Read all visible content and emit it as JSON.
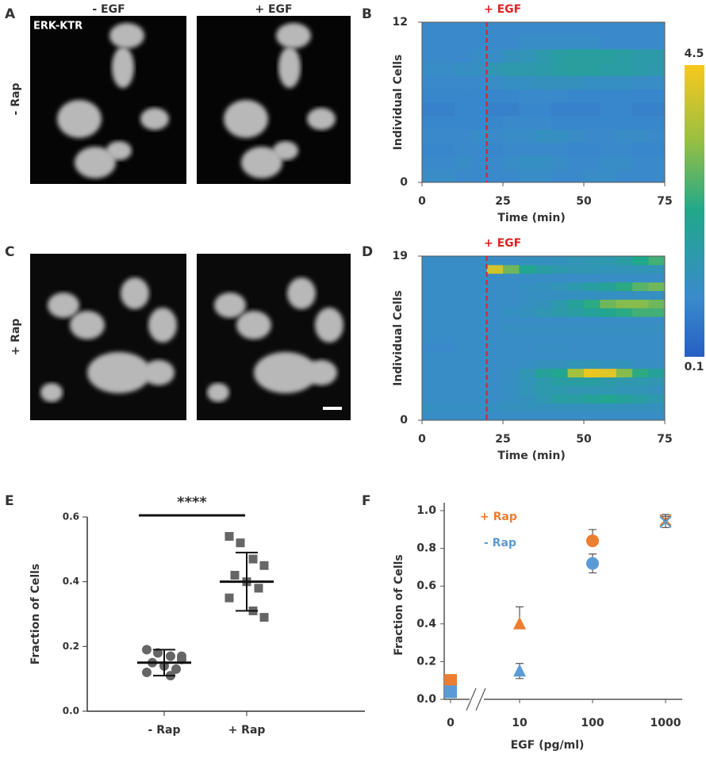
{
  "panel_labels": [
    "A",
    "B",
    "C",
    "D",
    "E",
    "F"
  ],
  "images": {
    "columns": [
      "- EGF",
      "+ EGF"
    ],
    "rows": [
      "- Rap",
      "+ Rap"
    ],
    "marker": "ERK-KTR"
  },
  "colorbar": {
    "zlim": [
      0.1,
      4.5
    ]
  },
  "chart_data": [
    {
      "type": "heatmap",
      "xlabel": "Time (min)",
      "ylabel": "Individual Cells",
      "annotation": "+ EGF",
      "annotation_x": 20,
      "xlim": [
        0,
        75
      ],
      "xticks": [
        0,
        25,
        50,
        75
      ],
      "ylim": [
        0,
        12
      ],
      "yticks": [
        0,
        12
      ],
      "z": [
        [
          1.1,
          1.1,
          1.0,
          1.0,
          1.0,
          1.0,
          1.1,
          1.1,
          1.0,
          1.0,
          1.1,
          1.1,
          1.0,
          1.0,
          1.0
        ],
        [
          1.0,
          1.0,
          1.1,
          1.0,
          1.0,
          1.1,
          1.2,
          1.2,
          1.1,
          1.0,
          1.0,
          1.1,
          1.1,
          1.0,
          1.0
        ],
        [
          0.9,
          0.9,
          1.0,
          1.0,
          0.9,
          1.0,
          1.0,
          1.0,
          1.0,
          0.9,
          0.9,
          1.0,
          1.0,
          0.9,
          0.9
        ],
        [
          1.0,
          1.0,
          1.0,
          1.1,
          1.0,
          1.1,
          1.1,
          1.2,
          1.2,
          1.1,
          1.0,
          1.0,
          1.1,
          1.1,
          1.0
        ],
        [
          0.9,
          0.9,
          0.9,
          0.9,
          0.9,
          1.0,
          1.0,
          1.0,
          0.9,
          0.9,
          0.9,
          0.9,
          0.9,
          0.9,
          0.9
        ],
        [
          0.8,
          0.8,
          0.9,
          0.9,
          0.8,
          0.8,
          0.9,
          0.9,
          0.8,
          0.8,
          0.8,
          0.9,
          0.9,
          0.8,
          0.8
        ],
        [
          0.9,
          0.9,
          0.9,
          0.9,
          0.9,
          0.9,
          1.0,
          1.0,
          1.0,
          0.9,
          0.9,
          0.9,
          0.9,
          0.9,
          0.9
        ],
        [
          1.0,
          1.0,
          1.0,
          1.0,
          1.1,
          1.2,
          1.2,
          1.3,
          1.3,
          1.3,
          1.2,
          1.2,
          1.2,
          1.1,
          1.1
        ],
        [
          1.1,
          1.1,
          1.2,
          1.2,
          1.5,
          1.6,
          1.6,
          1.7,
          1.8,
          1.9,
          1.9,
          1.8,
          1.8,
          1.7,
          1.6
        ],
        [
          1.0,
          1.0,
          1.0,
          1.1,
          1.1,
          1.3,
          1.4,
          1.6,
          1.8,
          1.9,
          1.9,
          1.9,
          1.8,
          1.7,
          1.7
        ],
        [
          1.0,
          1.0,
          1.0,
          1.0,
          1.0,
          1.0,
          1.1,
          1.1,
          1.1,
          1.1,
          1.1,
          1.0,
          1.0,
          1.0,
          1.0
        ],
        [
          1.0,
          1.0,
          1.0,
          1.0,
          1.0,
          1.0,
          1.0,
          1.0,
          1.0,
          1.0,
          1.0,
          1.0,
          1.0,
          1.0,
          1.0
        ]
      ]
    },
    {
      "type": "heatmap",
      "xlabel": "Time (min)",
      "ylabel": "Individual Cells",
      "annotation": "+ EGF",
      "annotation_x": 20,
      "xlim": [
        0,
        75
      ],
      "xticks": [
        0,
        25,
        50,
        75
      ],
      "ylim": [
        0,
        19
      ],
      "yticks": [
        0,
        19
      ],
      "z": [
        [
          1.1,
          1.1,
          1.1,
          1.1,
          1.1,
          1.1,
          1.1,
          1.1,
          1.1,
          1.1,
          1.1,
          1.1,
          1.1,
          1.1,
          1.1
        ],
        [
          1.2,
          1.2,
          1.2,
          1.2,
          1.2,
          1.3,
          1.3,
          1.3,
          1.3,
          1.3,
          1.3,
          1.3,
          1.3,
          1.3,
          1.3
        ],
        [
          1.1,
          1.1,
          1.1,
          1.1,
          1.1,
          1.2,
          1.3,
          1.5,
          1.8,
          1.8,
          2.0,
          2.2,
          2.0,
          1.8,
          1.6
        ],
        [
          1.1,
          1.1,
          1.1,
          1.1,
          1.1,
          1.2,
          1.4,
          1.6,
          1.6,
          1.5,
          1.5,
          1.5,
          1.4,
          1.4,
          1.3
        ],
        [
          1.1,
          1.1,
          1.1,
          1.1,
          1.1,
          1.2,
          1.4,
          1.6,
          1.8,
          1.8,
          1.8,
          1.7,
          1.6,
          1.6,
          1.5
        ],
        [
          1.1,
          1.1,
          1.1,
          1.1,
          1.1,
          1.2,
          1.5,
          2.0,
          2.2,
          3.5,
          4.3,
          4.2,
          3.2,
          2.4,
          2.0
        ],
        [
          1.1,
          1.1,
          1.1,
          1.1,
          1.1,
          1.1,
          1.2,
          1.3,
          1.3,
          1.4,
          1.4,
          1.3,
          1.3,
          1.2,
          1.2
        ],
        [
          1.1,
          1.1,
          1.1,
          1.1,
          1.1,
          1.1,
          1.1,
          1.1,
          1.1,
          1.1,
          1.1,
          1.1,
          1.1,
          1.1,
          1.1
        ],
        [
          1.0,
          1.0,
          1.1,
          1.1,
          1.1,
          1.1,
          1.1,
          1.2,
          1.2,
          1.1,
          1.1,
          1.1,
          1.1,
          1.1,
          1.1
        ],
        [
          1.1,
          1.1,
          1.1,
          1.1,
          1.1,
          1.1,
          1.1,
          1.1,
          1.1,
          1.1,
          1.1,
          1.1,
          1.1,
          1.1,
          1.1
        ],
        [
          1.1,
          1.1,
          1.1,
          1.1,
          1.1,
          1.2,
          1.2,
          1.2,
          1.2,
          1.2,
          1.2,
          1.2,
          1.2,
          1.2,
          1.2
        ],
        [
          1.1,
          1.1,
          1.1,
          1.1,
          1.1,
          1.1,
          1.1,
          1.1,
          1.1,
          1.1,
          1.1,
          1.1,
          1.1,
          1.1,
          1.1
        ],
        [
          1.1,
          1.1,
          1.1,
          1.1,
          1.1,
          1.2,
          1.3,
          1.5,
          1.7,
          1.8,
          2.0,
          2.2,
          2.4,
          2.6,
          2.6
        ],
        [
          1.1,
          1.1,
          1.1,
          1.1,
          1.1,
          1.1,
          1.2,
          1.3,
          1.6,
          2.0,
          2.4,
          3.0,
          3.2,
          3.2,
          3.0
        ],
        [
          1.1,
          1.1,
          1.1,
          1.1,
          1.1,
          1.1,
          1.2,
          1.2,
          1.2,
          1.2,
          1.2,
          1.2,
          1.2,
          1.2,
          1.2
        ],
        [
          1.1,
          1.1,
          1.1,
          1.1,
          1.1,
          1.1,
          1.2,
          1.3,
          1.4,
          1.6,
          1.8,
          2.0,
          2.4,
          2.8,
          3.0
        ],
        [
          1.1,
          1.1,
          1.1,
          1.1,
          1.1,
          1.1,
          1.1,
          1.1,
          1.1,
          1.1,
          1.1,
          1.1,
          1.1,
          1.1,
          1.1
        ],
        [
          1.1,
          1.1,
          1.1,
          1.1,
          4.0,
          3.0,
          2.2,
          1.8,
          1.6,
          1.5,
          1.5,
          1.4,
          1.4,
          1.4,
          1.4
        ],
        [
          1.1,
          1.1,
          1.1,
          1.1,
          1.1,
          1.1,
          1.2,
          1.2,
          1.3,
          1.4,
          1.5,
          1.6,
          1.8,
          2.3,
          2.6
        ]
      ]
    },
    {
      "type": "dot",
      "ylabel": "Fraction of Cells",
      "annotation": "****",
      "color": "#666666",
      "categories": [
        "- Rap",
        "+ Rap"
      ],
      "markers": [
        "circle",
        "square"
      ],
      "ylim": [
        0,
        0.6
      ],
      "yticks": [
        {
          "value": 0,
          "label": "0.0"
        },
        {
          "value": 0.2,
          "label": "0.2"
        },
        {
          "value": 0.4,
          "label": "0.4"
        },
        {
          "value": 0.6,
          "label": "0.6"
        }
      ],
      "values": [
        [
          0.19,
          0.18,
          0.17,
          0.16,
          0.15,
          0.14,
          0.13,
          0.12,
          0.11,
          0.17
        ],
        [
          0.54,
          0.52,
          0.47,
          0.45,
          0.42,
          0.4,
          0.38,
          0.35,
          0.31,
          0.29
        ]
      ],
      "means": [
        0.15,
        0.4
      ],
      "sds": [
        0.04,
        0.09
      ]
    },
    {
      "type": "scatter",
      "xlabel": "EGF (pg/ml)",
      "ylabel": "Fraction of Cells",
      "xscale": "log",
      "axis_break": true,
      "x": [
        0,
        10,
        100,
        1000
      ],
      "xticks": [
        0,
        10,
        100,
        1000
      ],
      "markers": [
        "square",
        "triangle",
        "circle",
        "x"
      ],
      "ylim": [
        0,
        1
      ],
      "yticks": [
        {
          "value": 0,
          "label": "0.0"
        },
        {
          "value": 0.2,
          "label": "0.2"
        },
        {
          "value": 0.4,
          "label": "0.4"
        },
        {
          "value": 0.6,
          "label": "0.6"
        },
        {
          "value": 0.8,
          "label": "0.8"
        },
        {
          "value": 1,
          "label": "1.0"
        }
      ],
      "series": [
        {
          "name": "+ Rap",
          "color": "#ed7d31",
          "values": [
            0.1,
            0.4,
            0.84,
            0.95
          ],
          "errors": [
            null,
            0.09,
            0.06,
            0.03
          ]
        },
        {
          "name": "- Rap",
          "color": "#5b9bd5",
          "values": [
            0.04,
            0.15,
            0.72,
            0.94
          ],
          "errors": [
            null,
            0.04,
            0.05,
            0.03
          ]
        }
      ]
    }
  ]
}
